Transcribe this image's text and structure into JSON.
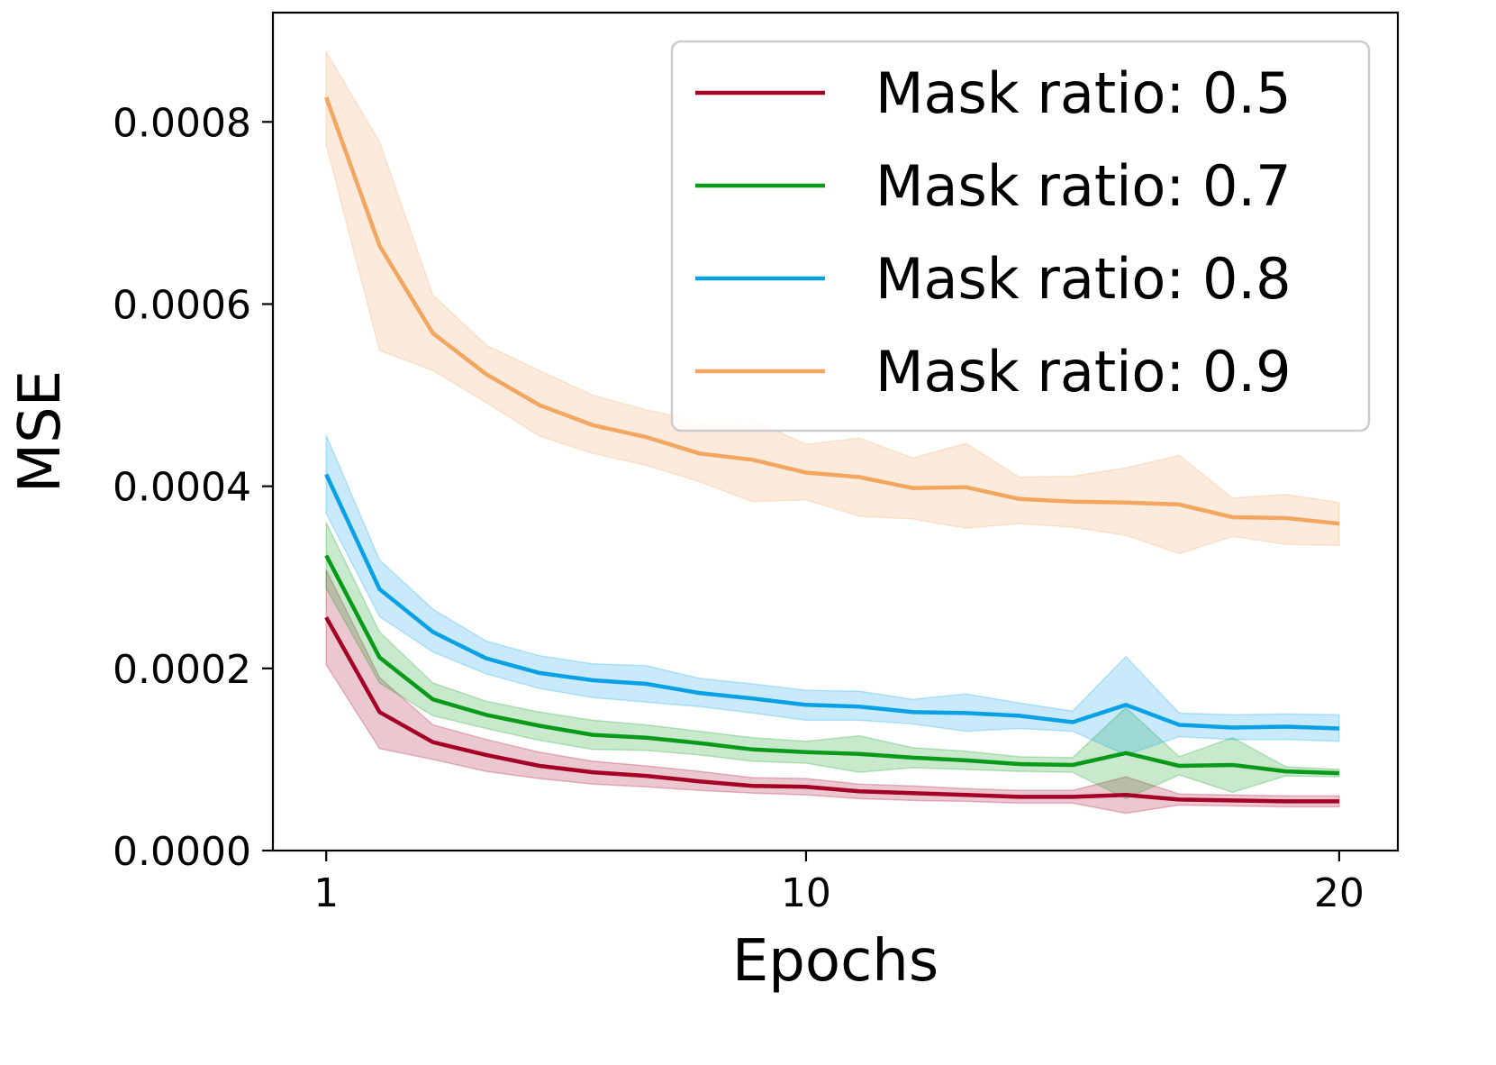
{
  "chart_data": {
    "type": "line",
    "title": "",
    "xlabel": "Epochs",
    "ylabel": "MSE",
    "xlim": [
      0,
      21.1
    ],
    "ylim": [
      0,
      0.00092
    ],
    "xticks": [
      1,
      10,
      20
    ],
    "xtick_labels": [
      "1",
      "10",
      "20"
    ],
    "yticks": [
      0,
      0.0002,
      0.0004,
      0.0006,
      0.0008
    ],
    "ytick_labels": [
      "0.0000",
      "0.0002",
      "0.0004",
      "0.0006",
      "0.0008"
    ],
    "grid": false,
    "legend_position": "top-right",
    "x": [
      1,
      2,
      3,
      4,
      5,
      6,
      7,
      8,
      9,
      10,
      11,
      12,
      13,
      14,
      15,
      16,
      17,
      18,
      19,
      20
    ],
    "series": [
      {
        "name": "Mask ratio: 0.5",
        "color": "#a50026",
        "values": [
          0.000256,
          0.000152,
          0.000119,
          0.000105,
          9.3e-05,
          8.6e-05,
          8.2e-05,
          7.6e-05,
          7.1e-05,
          7e-05,
          6.5e-05,
          6.3e-05,
          6.1e-05,
          5.9e-05,
          5.9e-05,
          6.1e-05,
          5.6e-05,
          5.5e-05,
          5.4e-05,
          5.4e-05
        ],
        "lower": [
          0.000204,
          0.000112,
          0.0001,
          8.7e-05,
          7.9e-05,
          7.3e-05,
          7e-05,
          6.6e-05,
          6.3e-05,
          6.1e-05,
          5.7e-05,
          5.5e-05,
          5.4e-05,
          5.2e-05,
          5.2e-05,
          4.1e-05,
          5e-05,
          4.9e-05,
          4.8e-05,
          4.8e-05
        ],
        "upper": [
          0.000308,
          0.00019,
          0.000138,
          0.000122,
          0.000108,
          9.8e-05,
          9.3e-05,
          8.7e-05,
          8e-05,
          7.9e-05,
          7.3e-05,
          7.1e-05,
          6.8e-05,
          6.6e-05,
          6.6e-05,
          8.1e-05,
          6.2e-05,
          6.1e-05,
          6e-05,
          6e-05
        ]
      },
      {
        "name": "Mask ratio: 0.7",
        "color": "#0a9a1a",
        "values": [
          0.000324,
          0.000212,
          0.000166,
          0.000149,
          0.000137,
          0.000127,
          0.000124,
          0.000118,
          0.000111,
          0.000108,
          0.000106,
          0.000102,
          9.9e-05,
          9.5e-05,
          9.4e-05,
          0.000107,
          9.3e-05,
          9.4e-05,
          8.7e-05,
          8.5e-05
        ],
        "lower": [
          0.000288,
          0.000184,
          0.000148,
          0.000134,
          0.000121,
          0.000111,
          0.00011,
          0.000105,
          9.8e-05,
          9.6e-05,
          8.6e-05,
          9.1e-05,
          8.9e-05,
          8.7e-05,
          8.6e-05,
          5.7e-05,
          8.3e-05,
          6.4e-05,
          8.2e-05,
          8.1e-05
        ],
        "upper": [
          0.00036,
          0.00024,
          0.000184,
          0.000164,
          0.000152,
          0.000143,
          0.000138,
          0.000131,
          0.000124,
          0.00012,
          0.000126,
          0.000113,
          0.000109,
          0.000103,
          0.000102,
          0.000157,
          0.000103,
          0.000124,
          9.2e-05,
          8.9e-05
        ]
      },
      {
        "name": "Mask ratio: 0.8",
        "color": "#0aa0e6",
        "values": [
          0.000413,
          0.000287,
          0.00024,
          0.000211,
          0.000195,
          0.000187,
          0.000183,
          0.000173,
          0.000167,
          0.00016,
          0.000158,
          0.000152,
          0.000151,
          0.000148,
          0.000141,
          0.00016,
          0.000138,
          0.000135,
          0.000136,
          0.000134
        ],
        "lower": [
          0.00037,
          0.000257,
          0.000218,
          0.000194,
          0.000178,
          0.000168,
          0.000163,
          0.000158,
          0.000151,
          0.000143,
          0.000143,
          0.000139,
          0.000131,
          0.000134,
          0.000131,
          0.000105,
          0.000125,
          0.000122,
          0.000122,
          0.00012
        ],
        "upper": [
          0.000456,
          0.000319,
          0.000265,
          0.00023,
          0.000214,
          0.000205,
          0.000203,
          0.000189,
          0.000183,
          0.000176,
          0.000175,
          0.000166,
          0.000172,
          0.000162,
          0.000153,
          0.000213,
          0.000151,
          0.000149,
          0.00015,
          0.000149
        ]
      },
      {
        "name": "Mask ratio: 0.9",
        "color": "#f2a660",
        "values": [
          0.000827,
          0.000664,
          0.000568,
          0.000523,
          0.000489,
          0.000467,
          0.000454,
          0.000436,
          0.000429,
          0.000415,
          0.00041,
          0.000398,
          0.000399,
          0.000386,
          0.000383,
          0.000382,
          0.00038,
          0.000366,
          0.000365,
          0.000359
        ],
        "lower": [
          0.000775,
          0.000549,
          0.000527,
          0.000492,
          0.000455,
          0.000436,
          0.000423,
          0.000405,
          0.000383,
          0.000385,
          0.000367,
          0.000364,
          0.000354,
          0.000359,
          0.000355,
          0.000346,
          0.000326,
          0.000345,
          0.000336,
          0.000335
        ],
        "upper": [
          0.000877,
          0.000778,
          0.00061,
          0.000555,
          0.000527,
          0.0005,
          0.000484,
          0.000471,
          0.000473,
          0.000446,
          0.000453,
          0.000431,
          0.000447,
          0.00041,
          0.000411,
          0.00042,
          0.000434,
          0.000387,
          0.000391,
          0.000382
        ]
      }
    ]
  }
}
